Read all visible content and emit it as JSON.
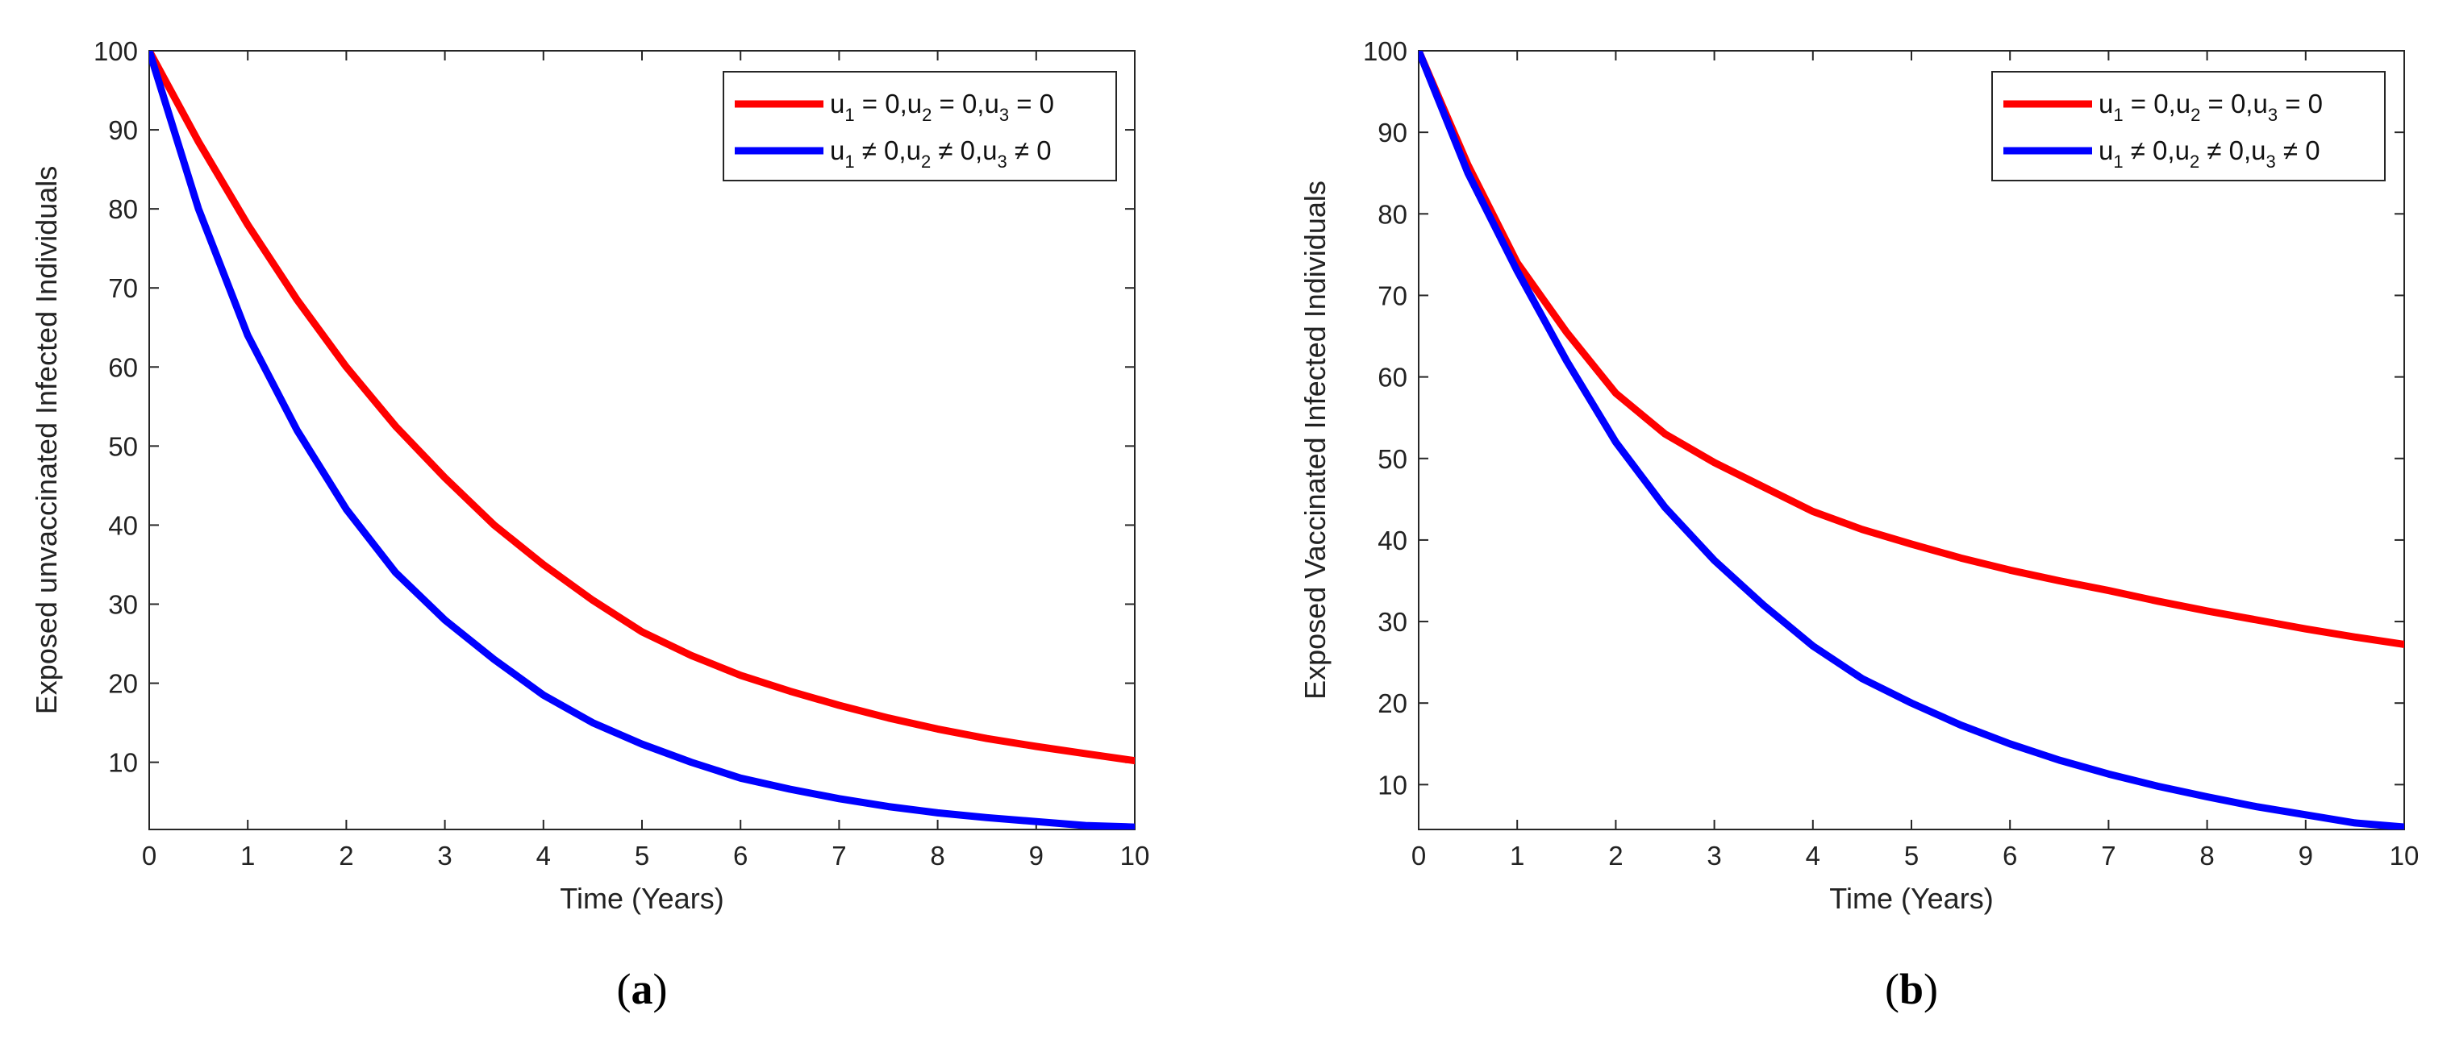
{
  "chart_data": [
    {
      "type": "line",
      "panel_caption": "(a)",
      "caption_letter": "a",
      "xlabel": "Time (Years)",
      "ylabel": "Exposed unvaccinated Infected Individuals",
      "xlim": [
        0,
        10
      ],
      "ylim": [
        1.5,
        100
      ],
      "xticks": [
        0,
        1,
        2,
        3,
        4,
        5,
        6,
        7,
        8,
        9,
        10
      ],
      "yticks": [
        10,
        20,
        30,
        40,
        50,
        60,
        70,
        80,
        90,
        100
      ],
      "grid": false,
      "legend_position": "top-right",
      "x": [
        0,
        0.5,
        1,
        1.5,
        2,
        2.5,
        3,
        3.5,
        4,
        4.5,
        5,
        5.5,
        6,
        6.5,
        7,
        7.5,
        8,
        8.5,
        9,
        9.5,
        10
      ],
      "series": [
        {
          "color": "#ff0000",
          "legend": [
            "u",
            "1",
            " = 0,u",
            "2",
            " = 0,u",
            "3",
            " = 0"
          ],
          "values": [
            100,
            88.5,
            78,
            68.5,
            60,
            52.5,
            46,
            40,
            35,
            30.5,
            26.5,
            23.5,
            21,
            19,
            17.2,
            15.6,
            14.2,
            13,
            12,
            11.1,
            10.2
          ]
        },
        {
          "color": "#0000ff",
          "legend": [
            "u",
            "1",
            " ≠ 0,u",
            "2",
            " ≠ 0,u",
            "3",
            " ≠ 0"
          ],
          "values": [
            100,
            80,
            64,
            52,
            42,
            34,
            28,
            23,
            18.5,
            15,
            12.3,
            10,
            8,
            6.6,
            5.4,
            4.4,
            3.6,
            3,
            2.5,
            2.0,
            1.8
          ]
        }
      ]
    },
    {
      "type": "line",
      "panel_caption": "(b)",
      "caption_letter": "b",
      "xlabel": "Time (Years)",
      "ylabel": "Exposed Vaccinated Infected Individuals",
      "xlim": [
        0,
        10
      ],
      "ylim": [
        4.5,
        100
      ],
      "xticks": [
        0,
        1,
        2,
        3,
        4,
        5,
        6,
        7,
        8,
        9,
        10
      ],
      "yticks": [
        10,
        20,
        30,
        40,
        50,
        60,
        70,
        80,
        90,
        100
      ],
      "grid": false,
      "legend_position": "top-right",
      "x": [
        0,
        0.5,
        1,
        1.5,
        2,
        2.5,
        3,
        3.5,
        4,
        4.5,
        5,
        5.5,
        6,
        6.5,
        7,
        7.5,
        8,
        8.5,
        9,
        9.5,
        10
      ],
      "series": [
        {
          "color": "#ff0000",
          "legend": [
            "u",
            "1",
            " = 0,u",
            "2",
            " = 0,u",
            "3",
            " = 0"
          ],
          "values": [
            100,
            86,
            74,
            65.5,
            58,
            53,
            49.5,
            46.5,
            43.5,
            41.3,
            39.5,
            37.8,
            36.3,
            35,
            33.8,
            32.5,
            31.3,
            30.2,
            29.1,
            28.1,
            27.2
          ]
        },
        {
          "color": "#0000ff",
          "legend": [
            "u",
            "1",
            " ≠ 0,u",
            "2",
            " ≠ 0,u",
            "3",
            " ≠ 0"
          ],
          "values": [
            100,
            85,
            73,
            62,
            52,
            44,
            37.5,
            32,
            27,
            23,
            20,
            17.3,
            15,
            13,
            11.3,
            9.8,
            8.5,
            7.3,
            6.3,
            5.3,
            4.8
          ]
        }
      ]
    }
  ]
}
